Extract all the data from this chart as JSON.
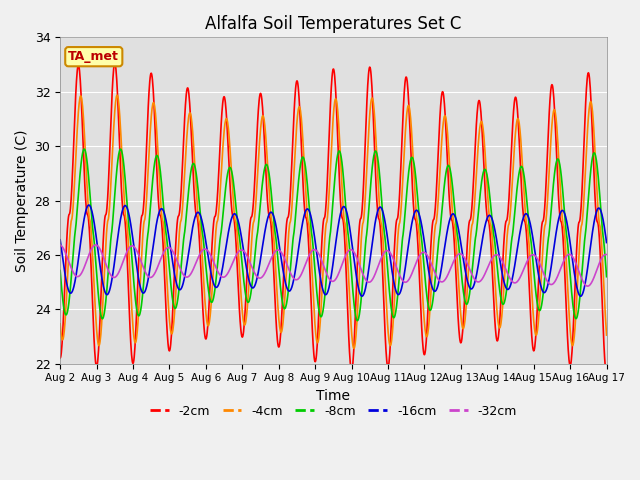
{
  "title": "Alfalfa Soil Temperatures Set C",
  "xlabel": "Time",
  "ylabel": "Soil Temperature (C)",
  "ylim": [
    22,
    34
  ],
  "xlim": [
    0,
    15
  ],
  "xtick_labels": [
    "Aug 2",
    "Aug 3",
    "Aug 4",
    "Aug 5",
    "Aug 6",
    "Aug 7",
    "Aug 8",
    "Aug 9",
    "Aug 10",
    "Aug 11",
    "Aug 12",
    "Aug 13",
    "Aug 14",
    "Aug 15",
    "Aug 16",
    "Aug 17"
  ],
  "xtick_positions": [
    0,
    1,
    2,
    3,
    4,
    5,
    6,
    7,
    8,
    9,
    10,
    11,
    12,
    13,
    14,
    15
  ],
  "ytick_positions": [
    22,
    24,
    26,
    28,
    30,
    32,
    34
  ],
  "series_colors": [
    "#ff0000",
    "#ff8800",
    "#00cc00",
    "#0000dd",
    "#cc44cc"
  ],
  "series_labels": [
    "-2cm",
    "-4cm",
    "-8cm",
    "-16cm",
    "-32cm"
  ],
  "line_width": 1.2,
  "bg_color": "#e8e8e8",
  "plot_bg": "#e0e0e0",
  "annotation_text": "TA_met",
  "annotation_color": "#bb0000",
  "annotation_bg": "#ffffaa",
  "annotation_border": "#cc8800"
}
